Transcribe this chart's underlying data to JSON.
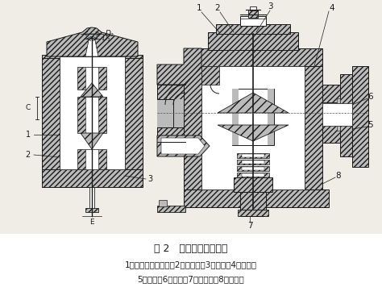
{
  "title": "图 2   浮桶差压式疏水阀",
  "caption_line1": "1－主阀芯（活塞）；2－导阀芯；3－汽缸；4－导管；",
  "caption_line2": "5－浮筒；6－阀杆；7－配重片；8－导向架",
  "background_color": "#f0ede6",
  "text_color": "#1a1a1a",
  "hatch_color": "#2a2a2a",
  "title_fontsize": 9,
  "caption_fontsize": 7.5
}
